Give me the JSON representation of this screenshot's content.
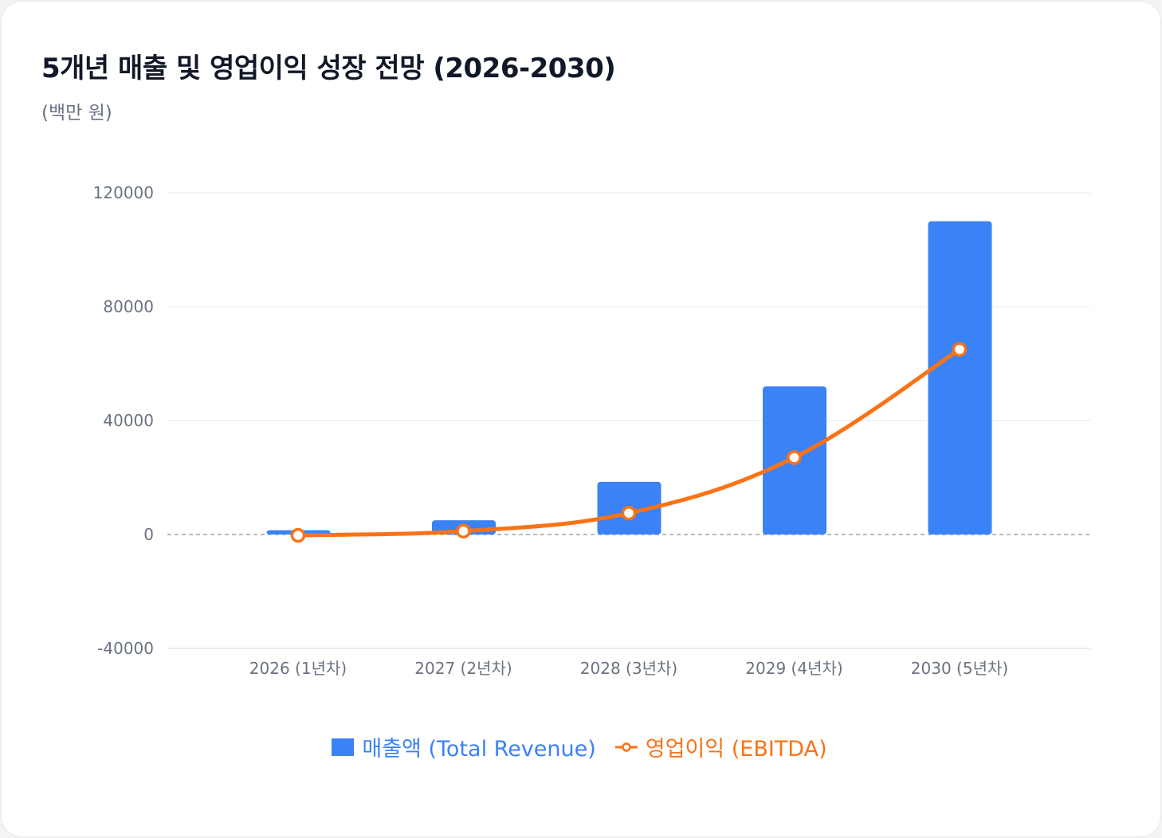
{
  "title": "5개년 매출 및 영업이익 성장 전망 (2026-2030)",
  "subtitle": "(백만 원)",
  "colors": {
    "revenue": "#3b82f6",
    "ebitda": "#f97316",
    "grid": "#eef0f3",
    "zero_line": "#9ca3af",
    "text": "#6b7280"
  },
  "legend": {
    "revenue_label": "매출액 (Total Revenue)",
    "ebitda_label": "영업이익 (EBITDA)"
  },
  "chart_data": {
    "type": "bar",
    "title": "5개년 매출 및 영업이익 성장 전망 (2026-2030)",
    "subtitle": "(백만 원)",
    "categories": [
      "2026 (1년차)",
      "2027 (2년차)",
      "2028 (3년차)",
      "2029 (4년차)",
      "2030 (5년차)"
    ],
    "series": [
      {
        "name": "매출액 (Total Revenue)",
        "type": "bar",
        "values": [
          1500,
          5000,
          18500,
          52000,
          110000
        ]
      },
      {
        "name": "영업이익 (EBITDA)",
        "type": "line",
        "values": [
          -300,
          1200,
          7500,
          27000,
          65000
        ]
      }
    ],
    "yticks": [
      -40000,
      0,
      40000,
      80000,
      120000
    ],
    "ylim": [
      -40000,
      120000
    ],
    "xlabel": "",
    "ylabel": "",
    "grid": true,
    "legend_position": "bottom-center"
  }
}
